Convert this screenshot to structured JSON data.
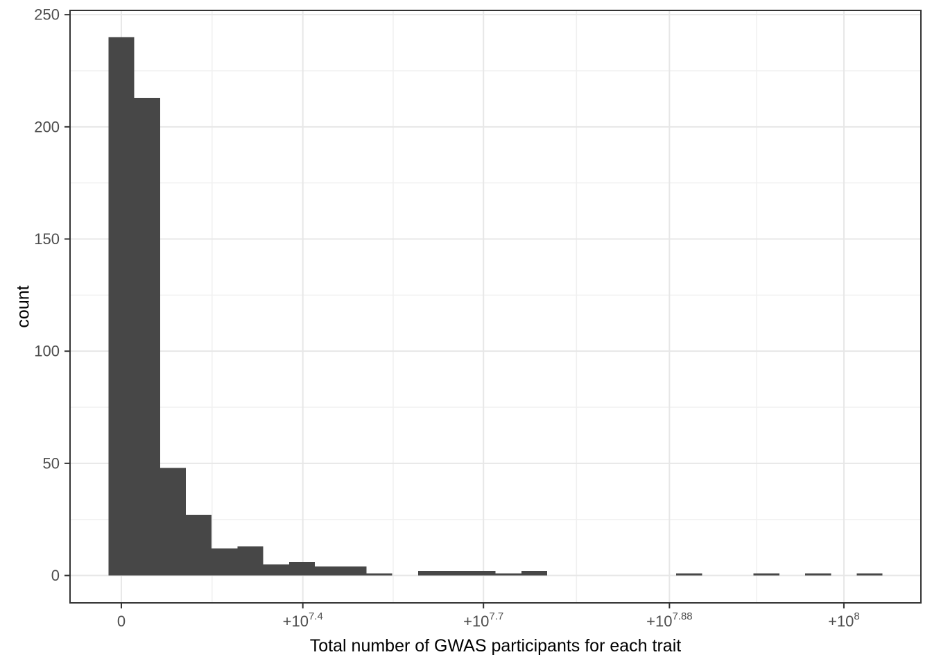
{
  "chart_data": {
    "type": "histogram",
    "title": "",
    "xlabel": "Total number of GWAS participants for each trait",
    "ylabel": "count",
    "x_scale": "linear in participants; tick labels written as powers of ten",
    "bin_width": 3571429,
    "bin_start_center": 0,
    "bin_counts": [
      240,
      213,
      48,
      27,
      12,
      13,
      5,
      6,
      4,
      4,
      1,
      0,
      2,
      2,
      2,
      1,
      2,
      0,
      0,
      0,
      0,
      0,
      1,
      0,
      0,
      1,
      0,
      1,
      0,
      1
    ],
    "x_ticks": [
      {
        "base": "0",
        "exp": "",
        "value": 0
      },
      {
        "base": "+10",
        "exp": "7.4",
        "value": 25118864
      },
      {
        "base": "+10",
        "exp": "7.7",
        "value": 50118723
      },
      {
        "base": "+10",
        "exp": "7.88",
        "value": 75857758
      },
      {
        "base": "+10",
        "exp": "8",
        "value": 100000000
      }
    ],
    "y_ticks": [
      0,
      50,
      100,
      150,
      200,
      250
    ],
    "y_minor_ticks": [
      25,
      75,
      125,
      175,
      225
    ],
    "xlim": [
      -7100000,
      110660000
    ],
    "ylim": [
      -12.2,
      251.9
    ],
    "legend": "none",
    "grid": "major and minor, light gray on white panel",
    "colors": {
      "bar_fill": "#474747",
      "grid_major": "#e7e7e7",
      "grid_minor": "#f0f0f0",
      "panel_border": "#333333",
      "tick_mark": "#333333",
      "tick_label": "#4d4d4d",
      "axis_title": "#000000",
      "background": "#ffffff"
    }
  }
}
